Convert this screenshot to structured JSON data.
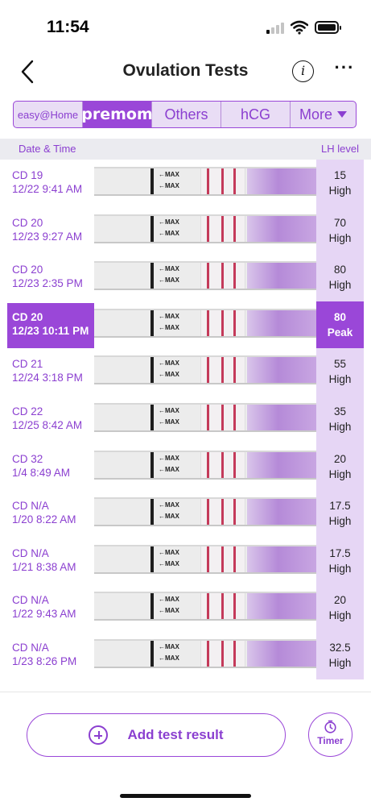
{
  "status_bar": {
    "time": "11:54"
  },
  "nav": {
    "title": "Ovulation Tests",
    "info_label": "i",
    "more_label": "···"
  },
  "brand_tabs": [
    {
      "label": "easy@Home",
      "selected": false
    },
    {
      "label": "premom",
      "selected": true
    },
    {
      "label": "Others",
      "selected": false
    },
    {
      "label": "hCG",
      "selected": false
    },
    {
      "label": "More",
      "selected": false
    }
  ],
  "columns": {
    "date_time": "Date & Time",
    "lh_level": "LH level"
  },
  "tests": [
    {
      "cd": "CD 19",
      "datetime": "12/22 9:41 AM",
      "lh": "15",
      "status": "High",
      "peak": false
    },
    {
      "cd": "CD 20",
      "datetime": "12/23 9:27 AM",
      "lh": "70",
      "status": "High",
      "peak": false
    },
    {
      "cd": "CD 20",
      "datetime": "12/23 2:35 PM",
      "lh": "80",
      "status": "High",
      "peak": false
    },
    {
      "cd": "CD 20",
      "datetime": "12/23 10:11 PM",
      "lh": "80",
      "status": "Peak",
      "peak": true
    },
    {
      "cd": "CD 21",
      "datetime": "12/24 3:18 PM",
      "lh": "55",
      "status": "High",
      "peak": false
    },
    {
      "cd": "CD 22",
      "datetime": "12/25 8:42 AM",
      "lh": "35",
      "status": "High",
      "peak": false
    },
    {
      "cd": "CD 32",
      "datetime": "1/4 8:49 AM",
      "lh": "20",
      "status": "High",
      "peak": false
    },
    {
      "cd": "CD N/A",
      "datetime": "1/20 8:22 AM",
      "lh": "17.5",
      "status": "High",
      "peak": false
    },
    {
      "cd": "CD N/A",
      "datetime": "1/21 8:38 AM",
      "lh": "17.5",
      "status": "High",
      "peak": false
    },
    {
      "cd": "CD N/A",
      "datetime": "1/22 9:43 AM",
      "lh": "20",
      "status": "High",
      "peak": false
    },
    {
      "cd": "CD N/A",
      "datetime": "1/23 8:26 PM",
      "lh": "32.5",
      "status": "High",
      "peak": false
    }
  ],
  "strip_label": "←MAX",
  "actions": {
    "add_label": "Add test result",
    "timer_label": "Timer"
  },
  "colors": {
    "accent": "#9a47d8",
    "accent_light": "#e6d6f5",
    "test_line": "#c43a5a"
  }
}
